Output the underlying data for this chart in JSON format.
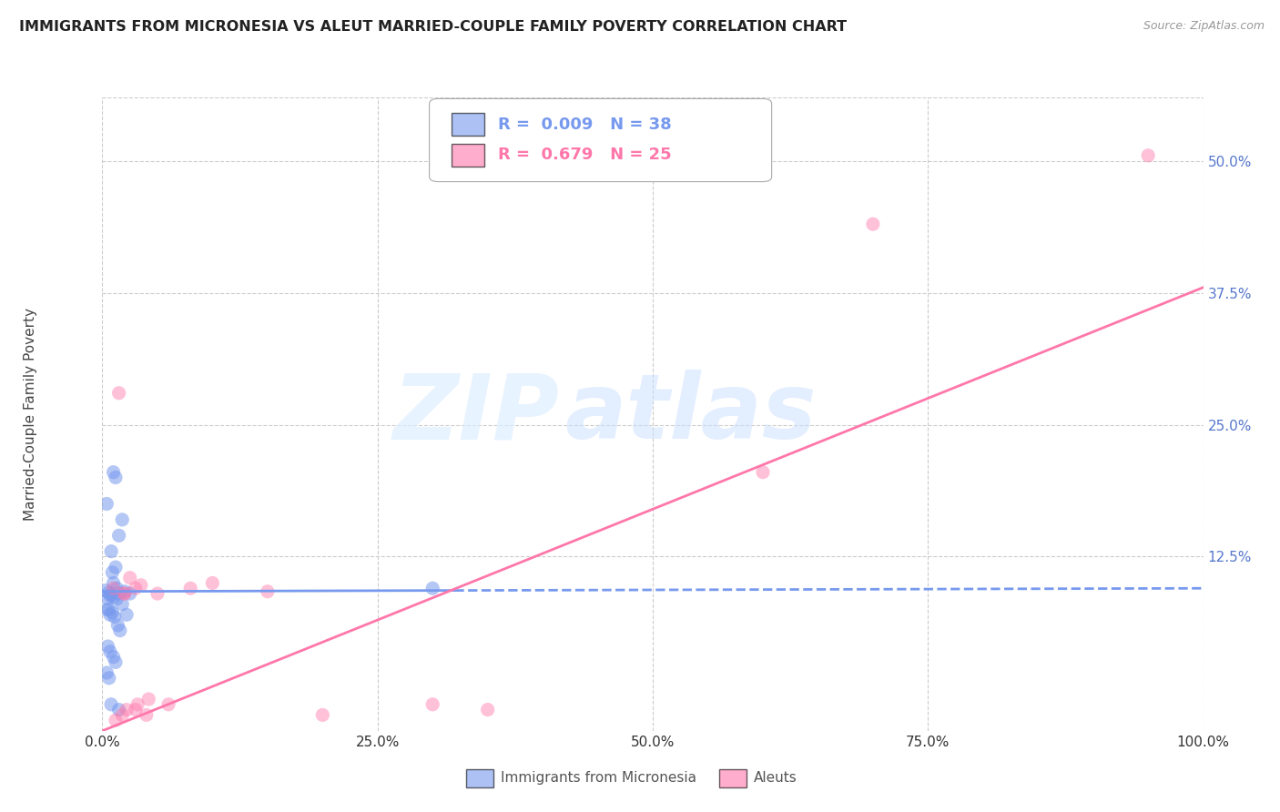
{
  "title": "IMMIGRANTS FROM MICRONESIA VS ALEUT MARRIED-COUPLE FAMILY POVERTY CORRELATION CHART",
  "source": "Source: ZipAtlas.com",
  "ylabel": "Married-Couple Family Poverty",
  "watermark_zip": "ZIP",
  "watermark_atlas": "atlas",
  "legend_blue_label": "Immigrants from Micronesia",
  "legend_pink_label": "Aleuts",
  "blue_R": "0.009",
  "blue_N": "38",
  "pink_R": "0.679",
  "pink_N": "25",
  "xlim": [
    0,
    100
  ],
  "ylim": [
    -4,
    56
  ],
  "background_color": "#ffffff",
  "grid_color": "#cccccc",
  "blue_color": "#7799ee",
  "pink_color": "#ff77aa",
  "ytick_label_color": "#5577cc",
  "blue_scatter_x": [
    0.5,
    0.7,
    1.0,
    1.2,
    0.4,
    0.8,
    1.5,
    1.8,
    0.6,
    1.0,
    1.3,
    2.0,
    0.9,
    1.2,
    1.5,
    1.8,
    2.2,
    0.4,
    0.7,
    0.9,
    1.1,
    1.4,
    1.6,
    0.3,
    0.6,
    0.8,
    1.0,
    1.3,
    0.5,
    0.7,
    1.0,
    1.2,
    0.4,
    0.6,
    30.0,
    1.5,
    0.8,
    2.5
  ],
  "blue_scatter_y": [
    8.5,
    8.8,
    20.5,
    20.0,
    17.5,
    13.0,
    14.5,
    16.0,
    7.5,
    10.0,
    9.5,
    9.2,
    11.0,
    11.5,
    9.0,
    8.0,
    7.0,
    7.5,
    7.0,
    7.2,
    6.8,
    6.0,
    5.5,
    9.3,
    9.1,
    8.9,
    8.7,
    8.5,
    4.0,
    3.5,
    3.0,
    2.5,
    1.5,
    1.0,
    9.5,
    -2.0,
    -1.5,
    9.0
  ],
  "pink_scatter_x": [
    1.5,
    2.5,
    3.5,
    5.0,
    8.0,
    10.0,
    15.0,
    2.0,
    3.0,
    60.0,
    70.0,
    95.0,
    20.0,
    1.0,
    2.0,
    3.0,
    4.0,
    30.0,
    35.0,
    1.2,
    2.2,
    3.2,
    4.2,
    1.8,
    6.0
  ],
  "pink_scatter_y": [
    28.0,
    10.5,
    9.8,
    9.0,
    9.5,
    10.0,
    9.2,
    9.0,
    9.5,
    20.5,
    44.0,
    50.5,
    -2.5,
    9.5,
    9.0,
    -2.0,
    -2.5,
    -1.5,
    -2.0,
    -3.0,
    -2.0,
    -1.5,
    -1.0,
    -2.5,
    -1.5
  ],
  "blue_trend_x": [
    0,
    100
  ],
  "blue_trend_y": [
    9.2,
    9.5
  ],
  "blue_solid_end_x": 32,
  "pink_trend_x": [
    0,
    100
  ],
  "pink_trend_y": [
    -4.0,
    38.0
  ],
  "ytick_vals": [
    12.5,
    25.0,
    37.5,
    50.0
  ],
  "xtick_vals": [
    0,
    25,
    50,
    75,
    100
  ],
  "xtick_labels": [
    "0.0%",
    "25.0%",
    "50.0%",
    "75.0%",
    "100.0%"
  ],
  "ytick_labels": [
    "12.5%",
    "25.0%",
    "37.5%",
    "50.0%"
  ]
}
